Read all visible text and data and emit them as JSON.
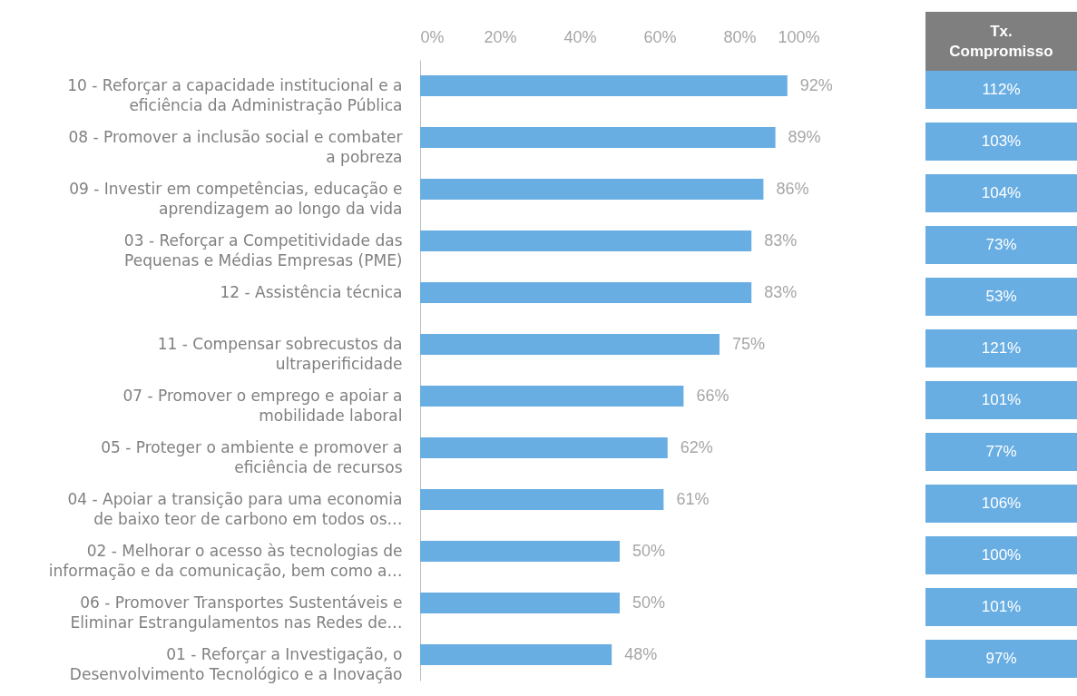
{
  "chart_data": [
    {
      "type": "bar",
      "orientation": "horizontal",
      "categories": [
        "10 - Reforçar a capacidade institucional e a eficiência da Administração Pública",
        "08 - Promover a inclusão social e combater a pobreza",
        "09 - Investir em competências, educação e aprendizagem ao longo da vida",
        "03 - Reforçar a Competitividade das Pequenas e Médias Empresas (PME)",
        "12 - Assistência técnica",
        "11 - Compensar sobrecustos da ultraperificidade",
        "07 - Promover o emprego e apoiar a mobilidade laboral",
        "05 - Proteger o ambiente e promover a eficiência de recursos",
        "04 - Apoiar a transição para uma economia de baixo teor de carbono em todos os…",
        "02 - Melhorar o acesso às tecnologias de informação e da comunicação, bem como a…",
        "06 - Promover Transportes Sustentáveis e Eliminar Estrangulamentos nas Redes de…",
        "01 - Reforçar  a Investigação, o Desenvolvimento Tecnológico e a Inovação"
      ],
      "values": [
        92,
        89,
        86,
        83,
        83,
        75,
        66,
        62,
        61,
        50,
        50,
        48
      ],
      "value_labels": [
        "92%",
        "89%",
        "86%",
        "83%",
        "83%",
        "75%",
        "66%",
        "62%",
        "61%",
        "50%",
        "50%",
        "48%"
      ],
      "color": "#69aee3",
      "xlim": [
        0,
        100
      ],
      "xticks": [
        {
          "value": 0,
          "label": "0%"
        },
        {
          "value": 20,
          "label": "20%"
        },
        {
          "value": 40,
          "label": "40%"
        },
        {
          "value": 60,
          "label": "60%"
        },
        {
          "value": 80,
          "label": "80%"
        },
        {
          "value": 100,
          "label": "100%"
        }
      ],
      "grid": false
    },
    {
      "type": "other",
      "title": "Tx. Compromisso",
      "annotations": [
        "112%",
        "103%",
        "104%",
        "73%",
        "53%",
        "121%",
        "101%",
        "77%",
        "106%",
        "100%",
        "101%",
        "97%"
      ]
    }
  ]
}
